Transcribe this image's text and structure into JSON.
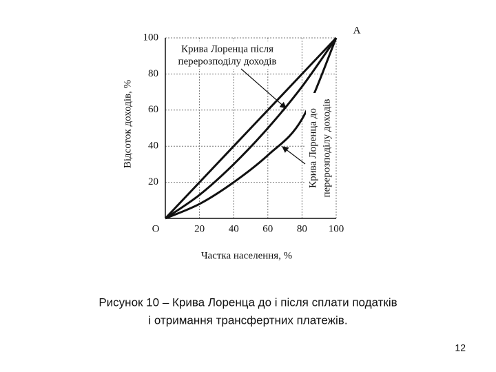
{
  "chart_data": {
    "type": "line",
    "x_label": "Частка населення, %",
    "y_label": "Відсоток доходів, %",
    "point_label": "A",
    "annotations": [
      [
        "Крива Лоренца після",
        "перерозподілу доходів"
      ],
      [
        "Крива Лоренца до",
        "перерозподілу доходів"
      ]
    ],
    "x": [
      0,
      20,
      40,
      60,
      80,
      100
    ],
    "series": [
      {
        "color": "#111111",
        "values": [
          0,
          20,
          40,
          60,
          80,
          100
        ]
      },
      {
        "color": "#111111",
        "values": [
          0,
          13,
          30,
          50,
          73,
          100
        ]
      },
      {
        "color": "#111111",
        "values": [
          0,
          8,
          20,
          35,
          55,
          100
        ]
      }
    ],
    "xlim": [
      0,
      100
    ],
    "ylim": [
      0,
      100
    ],
    "xticks": [
      {
        "value": 0,
        "label": "O"
      },
      20,
      40,
      60,
      80,
      100
    ],
    "yticks": [
      20,
      40,
      60,
      80,
      100
    ],
    "grid": true
  },
  "caption": [
    "Рисунок 10 – Крива Лоренца до і після сплати податків",
    "і отримання трансфертних платежів."
  ],
  "page_number": "12"
}
